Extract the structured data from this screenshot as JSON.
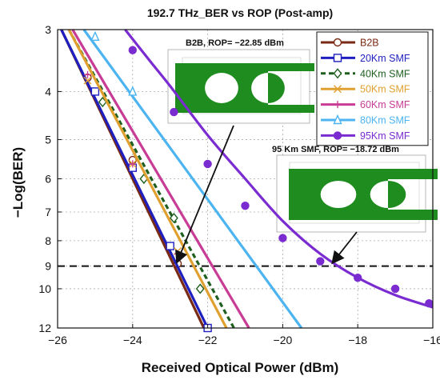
{
  "chart_data": {
    "type": "line",
    "title": "192.7 THz_BER vs ROP (Post-amp)",
    "xlabel": "Received Optical Power (dBm)",
    "ylabel": "−Log(BER)",
    "xlim": [
      -26,
      -16
    ],
    "ylim": [
      3,
      12
    ],
    "y_scale": "log",
    "y_inverted": true,
    "xticks": [
      -26,
      -24,
      -22,
      -20,
      -18,
      -16
    ],
    "xtick_labels": [
      "−26",
      "−24",
      "−22",
      "−20",
      "−18",
      "−16"
    ],
    "yticks": [
      3,
      4,
      5,
      6,
      7,
      8,
      9,
      10,
      12
    ],
    "grid": true,
    "legend_position": "top-right",
    "threshold": {
      "y": 9,
      "style": "dashed"
    },
    "series": [
      {
        "name": "B2B",
        "color": "#7a2a14",
        "marker": "circle-open",
        "dash": "",
        "line_points": [
          [
            -25.9,
            3.0
          ],
          [
            -22.1,
            12.0
          ]
        ],
        "marker_points": [
          [
            -25.2,
            3.75
          ],
          [
            -24.0,
            5.5
          ],
          [
            -22.8,
            8.9
          ]
        ]
      },
      {
        "name": "20Km SMF",
        "color": "#1f1fbf",
        "marker": "square-open",
        "dash": "",
        "line_points": [
          [
            -25.9,
            3.0
          ],
          [
            -22.0,
            12.0
          ]
        ],
        "marker_points": [
          [
            -25.0,
            4.0
          ],
          [
            -24.0,
            5.7
          ],
          [
            -23.0,
            8.2
          ],
          [
            -22.0,
            12.0
          ]
        ]
      },
      {
        "name": "40Km SMF",
        "color": "#1e5e1e",
        "marker": "diamond-open",
        "dash": "6,4",
        "line_points": [
          [
            -25.7,
            3.0
          ],
          [
            -21.3,
            12.0
          ]
        ],
        "marker_points": [
          [
            -24.8,
            4.2
          ],
          [
            -23.7,
            6.0
          ],
          [
            -22.9,
            7.2
          ],
          [
            -22.2,
            10.0
          ]
        ]
      },
      {
        "name": "50Km SMF",
        "color": "#e0a030",
        "marker": "x",
        "dash": "",
        "line_points": [
          [
            -25.7,
            3.0
          ],
          [
            -21.5,
            12.0
          ]
        ],
        "marker_points": [
          [
            -25.2,
            3.8
          ],
          [
            -24.0,
            5.6
          ],
          [
            -22.8,
            8.4
          ]
        ]
      },
      {
        "name": "60Km SMF",
        "color": "#c83c96",
        "marker": "plus",
        "dash": "",
        "line_points": [
          [
            -25.6,
            3.0
          ],
          [
            -20.9,
            12.0
          ]
        ],
        "marker_points": [
          [
            -25.2,
            3.7
          ],
          [
            -24.0,
            5.6
          ],
          [
            -22.8,
            8.5
          ]
        ]
      },
      {
        "name": "80Km SMF",
        "color": "#4cb4f0",
        "marker": "triangle-open",
        "dash": "",
        "line_points": [
          [
            -25.3,
            3.0
          ],
          [
            -19.5,
            12.0
          ]
        ],
        "marker_points": [
          [
            -25.0,
            3.1
          ],
          [
            -24.0,
            4.0
          ]
        ]
      },
      {
        "name": "95Km SMF",
        "color": "#7a2cd0",
        "marker": "circle-filled",
        "dash": "",
        "line_points": [
          [
            -24.2,
            3.0
          ],
          [
            -23.5,
            3.5
          ],
          [
            -23.0,
            3.9
          ],
          [
            -22.0,
            4.9
          ],
          [
            -21.0,
            6.0
          ],
          [
            -20.0,
            7.3
          ],
          [
            -19.0,
            8.5
          ],
          [
            -18.0,
            9.5
          ],
          [
            -17.0,
            10.3
          ],
          [
            -16.0,
            10.9
          ]
        ],
        "marker_points": [
          [
            -24.0,
            3.3
          ],
          [
            -22.9,
            4.4
          ],
          [
            -22.0,
            5.6
          ],
          [
            -21.0,
            6.8
          ],
          [
            -20.0,
            7.9
          ],
          [
            -19.0,
            8.8
          ],
          [
            -18.0,
            9.5
          ],
          [
            -17.0,
            10.0
          ],
          [
            -16.1,
            10.7
          ]
        ]
      }
    ],
    "annotations": [
      {
        "id": "b2b",
        "text": "B2B, ROP= −22.85 dBm",
        "target": [
          -22.85,
          9
        ]
      },
      {
        "id": "smf95",
        "text": "95 Km SMF, ROP= −18.72 dBm",
        "target": [
          -18.72,
          9
        ]
      }
    ]
  }
}
